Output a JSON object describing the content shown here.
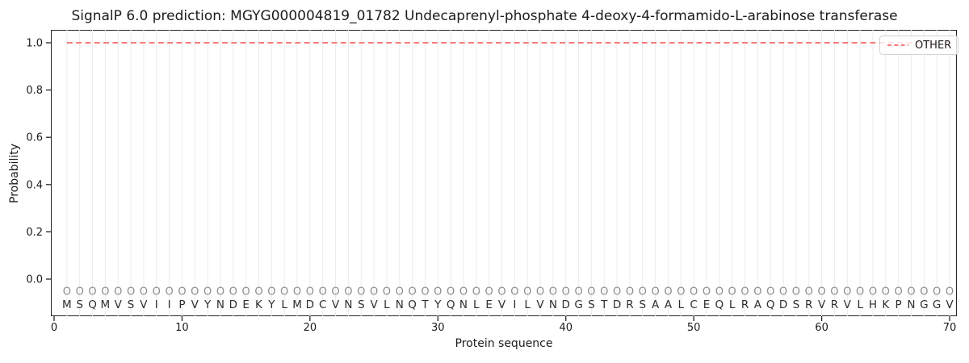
{
  "title": "SignalP 6.0 prediction: MGYG000004819_01782 Undecaprenyl-phosphate 4-deoxy-4-formamido-L-arabinose transferase",
  "legend": {
    "label": "OTHER",
    "line_color": "#f47c7c",
    "line_style": "dashed",
    "location": "upper right"
  },
  "chart_data": {
    "type": "line",
    "title": "SignalP 6.0 prediction: MGYG000004819_01782 Undecaprenyl-phosphate 4-deoxy-4-formamido-L-arabinose transferase",
    "xlabel": "Protein sequence",
    "ylabel": "Probability",
    "xlim": [
      -0.3,
      70.5
    ],
    "ylim": [
      -0.16,
      1.06
    ],
    "x_ticks": [
      0,
      10,
      20,
      30,
      40,
      50,
      60,
      70
    ],
    "y_ticks": [
      0.0,
      0.2,
      0.4,
      0.6,
      0.8,
      1.0
    ],
    "y_tick_labels": [
      "0.0",
      "0.2",
      "0.4",
      "0.6",
      "0.8",
      "1.0"
    ],
    "grid": "light vertical gridline at every residue position 1-70",
    "legend_position": "upper right",
    "series": [
      {
        "name": "OTHER",
        "color": "#f47c7c",
        "dash": "dashed",
        "x": [
          1,
          2,
          3,
          4,
          5,
          6,
          7,
          8,
          9,
          10,
          11,
          12,
          13,
          14,
          15,
          16,
          17,
          18,
          19,
          20,
          21,
          22,
          23,
          24,
          25,
          26,
          27,
          28,
          29,
          30,
          31,
          32,
          33,
          34,
          35,
          36,
          37,
          38,
          39,
          40,
          41,
          42,
          43,
          44,
          45,
          46,
          47,
          48,
          49,
          50,
          51,
          52,
          53,
          54,
          55,
          56,
          57,
          58,
          59,
          60,
          61,
          62,
          63,
          64,
          65,
          66,
          67,
          68,
          69,
          70
        ],
        "y": [
          1.0,
          1.0,
          1.0,
          1.0,
          1.0,
          1.0,
          1.0,
          1.0,
          1.0,
          1.0,
          1.0,
          1.0,
          1.0,
          1.0,
          1.0,
          1.0,
          1.0,
          1.0,
          1.0,
          1.0,
          1.0,
          1.0,
          1.0,
          1.0,
          1.0,
          1.0,
          1.0,
          1.0,
          1.0,
          1.0,
          1.0,
          1.0,
          1.0,
          1.0,
          1.0,
          1.0,
          1.0,
          1.0,
          1.0,
          1.0,
          1.0,
          1.0,
          1.0,
          1.0,
          1.0,
          1.0,
          1.0,
          1.0,
          1.0,
          1.0,
          1.0,
          1.0,
          1.0,
          1.0,
          1.0,
          1.0,
          1.0,
          1.0,
          1.0,
          1.0,
          1.0,
          1.0,
          1.0,
          1.0,
          1.0,
          1.0,
          1.0,
          1.0,
          1.0,
          1.0
        ]
      }
    ],
    "sequence": "MSQMVSVIIPVYNDEKYLMDCVNSVLNQTYQNLEVILVNDGSTDRSAALCEQLRAQDSRVRVLHKPNGGV",
    "position_labels": "OOOOOOOOOOOOOOOOOOOOOOOOOOOOOOOOOOOOOOOOOOOOOOOOOOOOOOOOOOOOOOOOOOOOOO",
    "style": {
      "grid_color": "#ebebeb",
      "axis_color": "#262626",
      "tick_label_color": "#1c1c1c",
      "marker_color": "#8c8c8c",
      "letter_color": "#2e2e2e",
      "line_width": 2
    }
  }
}
